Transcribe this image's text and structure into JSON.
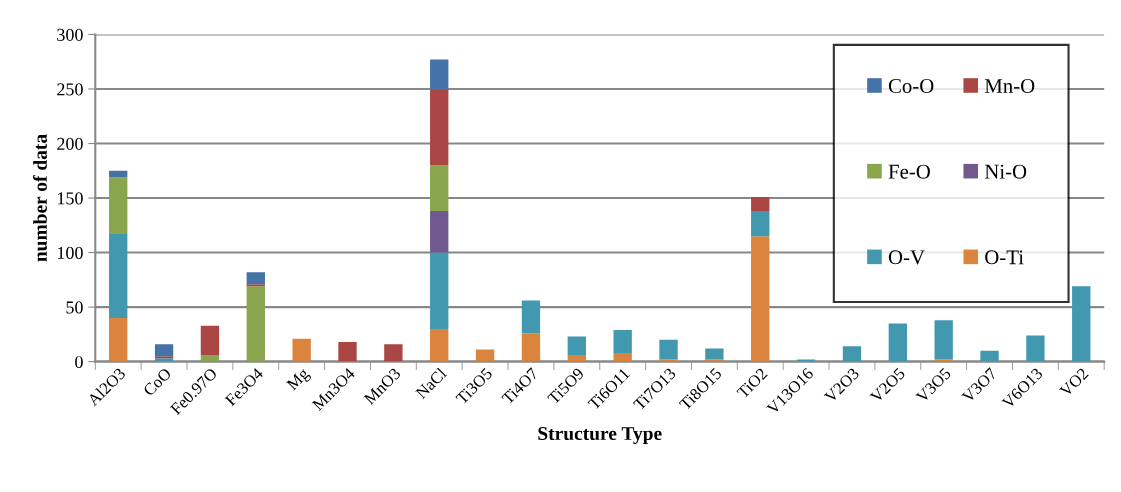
{
  "chart_data": {
    "type": "bar",
    "stacked": true,
    "xlabel": "Structure Type",
    "ylabel": "number of data",
    "categories": [
      "Al2O3",
      "CoO",
      "Fe0.97O",
      "Fe3O4",
      "Mg",
      "Mn3O4",
      "MnO3",
      "NaCl",
      "Ti3O5",
      "Ti4O7",
      "Ti5O9",
      "Ti6O11",
      "Ti7O13",
      "Ti8O15",
      "TiO2",
      "V13O16",
      "V2O3",
      "V2O5",
      "V3O5",
      "V3O7",
      "V6O13",
      "VO2"
    ],
    "series": [
      {
        "name": "O-Ti",
        "color": "#db843d",
        "values": [
          40,
          0,
          0,
          0,
          21,
          0,
          0,
          30,
          11,
          26,
          6,
          8,
          2,
          2,
          115,
          0,
          0,
          0,
          2,
          0,
          0,
          0
        ]
      },
      {
        "name": "O-V",
        "color": "#4198af",
        "values": [
          77,
          3,
          0,
          0,
          0,
          0,
          0,
          70,
          0,
          30,
          17,
          21,
          18,
          10,
          23,
          2,
          14,
          35,
          36,
          10,
          24,
          69
        ]
      },
      {
        "name": "Ni-O",
        "color": "#71588f",
        "values": [
          0,
          0,
          0,
          0,
          0,
          0,
          0,
          38,
          0,
          0,
          0,
          0,
          0,
          0,
          0,
          0,
          0,
          0,
          0,
          0,
          0,
          0
        ]
      },
      {
        "name": "Fe-O",
        "color": "#89a54e",
        "values": [
          52,
          0,
          6,
          69,
          0,
          0,
          0,
          42,
          0,
          0,
          0,
          0,
          0,
          0,
          0,
          0,
          0,
          0,
          0,
          0,
          0,
          0
        ]
      },
      {
        "name": "Mn-O",
        "color": "#aa4643",
        "values": [
          0,
          2,
          27,
          2,
          0,
          18,
          16,
          69,
          0,
          0,
          0,
          0,
          0,
          0,
          13,
          0,
          0,
          0,
          0,
          0,
          0,
          0
        ]
      },
      {
        "name": "Co-O",
        "color": "#4572a7",
        "values": [
          6,
          11,
          0,
          11,
          0,
          0,
          0,
          28,
          0,
          0,
          0,
          0,
          0,
          0,
          0,
          0,
          0,
          0,
          0,
          0,
          0,
          0
        ]
      }
    ],
    "ylim": [
      0,
      300
    ],
    "yticks": [
      0,
      50,
      100,
      150,
      200,
      250,
      300
    ],
    "grid": "y",
    "legend": "top right"
  }
}
